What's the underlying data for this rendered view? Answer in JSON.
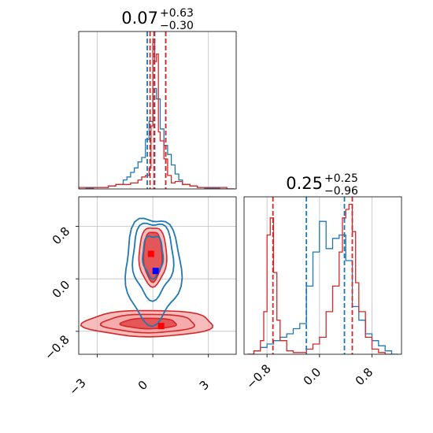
{
  "colors": {
    "blue": "#1f77b4",
    "red": "#d62728",
    "red_fill_light": "#f4a5a6",
    "red_fill_mid": "#e35152",
    "marker_blue": "#0000ff",
    "marker_red": "#ff0000",
    "grid": "#c0c0c0"
  },
  "chart_data": [
    {
      "type": "histogram",
      "panel": "top-left marginal",
      "title": {
        "value": "0.07",
        "plus": "+0.63",
        "minus": "−0.30"
      },
      "xlim": [
        -4,
        4.5
      ],
      "grid": true,
      "quantile_lines": {
        "blue": [
          -0.3,
          0.1,
          0.7
        ],
        "red": [
          -0.15,
          0.07,
          0.7
        ]
      },
      "series": [
        {
          "color": "blue",
          "x": [
            -4.0,
            -3.6,
            -3.2,
            -2.8,
            -2.4,
            -2.0,
            -1.6,
            -1.4,
            -1.2,
            -1.0,
            -0.8,
            -0.6,
            -0.4,
            -0.2,
            0.0,
            0.2,
            0.4,
            0.6,
            0.8,
            1.0,
            1.2,
            1.4,
            1.6,
            2.0,
            2.4,
            2.8,
            3.2,
            3.6,
            4.0
          ],
          "values": [
            0,
            0.5,
            1,
            1,
            2,
            3,
            6,
            8,
            11,
            14,
            18,
            21,
            33,
            45,
            67,
            60,
            40,
            29,
            23,
            16,
            10,
            6,
            3,
            2,
            1,
            0.5,
            0.5,
            0,
            0
          ]
        },
        {
          "color": "red",
          "x": [
            -4.0,
            -3.6,
            -3.2,
            -2.8,
            -2.4,
            -2.0,
            -1.6,
            -1.2,
            -0.8,
            -0.6,
            -0.4,
            -0.2,
            -0.1,
            0.0,
            0.1,
            0.2,
            0.3,
            0.4,
            0.6,
            0.8,
            1.0,
            1.2,
            1.6,
            2.0,
            2.4,
            2.8,
            3.2,
            3.6,
            4.0
          ],
          "values": [
            1,
            1,
            1,
            1,
            2,
            3,
            3,
            4,
            6,
            8,
            9,
            14,
            42,
            100,
            85,
            90,
            38,
            32,
            20,
            9,
            4,
            5,
            3,
            2,
            1,
            1,
            1,
            1,
            0
          ]
        }
      ]
    },
    {
      "type": "contour",
      "panel": "bottom-left 2D",
      "xlim": [
        -4,
        4.5
      ],
      "ylim": [
        -1.15,
        1.25
      ],
      "x_ticks": [
        "−3",
        "0",
        "3"
      ],
      "x_tick_values": [
        -3,
        0,
        3
      ],
      "y_ticks": [
        "−0.8",
        "0.0",
        "0.8"
      ],
      "y_tick_values": [
        -0.8,
        0.0,
        0.8
      ],
      "grid": true,
      "blue_contours": [
        {
          "cx": 0.0,
          "cy": 0.35,
          "rx": 0.55,
          "ry": 0.32
        },
        {
          "cx": 0.0,
          "cy": 0.3,
          "rx": 1.1,
          "ry": 0.58
        },
        {
          "cx": 0.0,
          "cy": 0.15,
          "rx": 1.5,
          "ry": 0.8
        }
      ],
      "red_contours": [
        {
          "cx": 0.0,
          "cy": 0.35,
          "rx": 0.5,
          "ry": 0.38,
          "level": "inner"
        },
        {
          "cx": 0.0,
          "cy": 0.35,
          "rx": 0.75,
          "ry": 0.45,
          "level": "outer"
        },
        {
          "cx": -0.2,
          "cy": -0.68,
          "rx": 1.5,
          "ry": 0.08,
          "level": "inner"
        },
        {
          "cx": -0.2,
          "cy": -0.68,
          "rx": 2.5,
          "ry": 0.14,
          "level": "outer"
        },
        {
          "cx": -0.2,
          "cy": -0.68,
          "rx": 3.5,
          "ry": 0.2,
          "level": "outermost"
        }
      ],
      "markers": [
        {
          "color": "marker_blue",
          "x": 0.15,
          "y": 0.12
        },
        {
          "color": "marker_red",
          "x": 0.45,
          "y": -0.72
        },
        {
          "color": "marker_red",
          "x": -0.1,
          "y": 0.38
        }
      ]
    },
    {
      "type": "histogram",
      "panel": "bottom-right marginal",
      "title": {
        "value": "0.25",
        "plus": "+0.25",
        "minus": "−0.96"
      },
      "xlim": [
        -1.15,
        1.25
      ],
      "x_ticks": [
        "−0.8",
        "0.0",
        "0.8"
      ],
      "x_tick_values": [
        -0.8,
        0.0,
        0.8
      ],
      "grid": true,
      "quantile_lines": {
        "blue": [
          -0.2,
          0.38
        ],
        "red": [
          -0.71,
          0.5
        ]
      },
      "series": [
        {
          "color": "blue",
          "x": [
            -1.1,
            -1.0,
            -0.9,
            -0.8,
            -0.7,
            -0.6,
            -0.5,
            -0.4,
            -0.3,
            -0.2,
            -0.1,
            0.0,
            0.1,
            0.2,
            0.3,
            0.4,
            0.5,
            0.6,
            0.7,
            0.8,
            0.9,
            1.0,
            1.1
          ],
          "values": [
            0,
            2,
            4,
            6,
            8,
            10,
            12,
            15,
            18,
            40,
            60,
            78,
            62,
            68,
            70,
            55,
            28,
            20,
            12,
            8,
            5,
            2,
            0
          ]
        },
        {
          "color": "red",
          "x": [
            -1.1,
            -1.0,
            -0.9,
            -0.85,
            -0.8,
            -0.75,
            -0.7,
            -0.65,
            -0.6,
            -0.5,
            -0.4,
            -0.3,
            -0.2,
            -0.1,
            0.0,
            0.1,
            0.2,
            0.3,
            0.35,
            0.4,
            0.45,
            0.5,
            0.55,
            0.6,
            0.7,
            0.8,
            0.9,
            1.0
          ],
          "values": [
            0,
            2,
            8,
            25,
            70,
            80,
            48,
            20,
            8,
            2,
            1,
            1,
            3,
            6,
            10,
            25,
            40,
            60,
            80,
            85,
            88,
            72,
            42,
            25,
            10,
            3,
            1,
            0
          ]
        }
      ]
    }
  ]
}
